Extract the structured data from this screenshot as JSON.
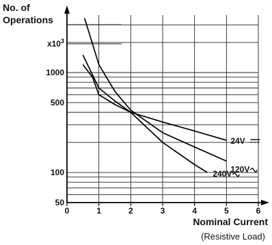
{
  "chart_data": {
    "type": "line",
    "title": "",
    "ylabel_line1": "No. of",
    "ylabel_line2": "Operations",
    "y_multiplier": "x10",
    "y_multiplier_exp": "3",
    "xlabel": "Nominal Current",
    "xlabel_sub": "(Resistive Load)",
    "x_ticks": [
      "0",
      "1",
      "2",
      "3",
      "4",
      "5",
      "6"
    ],
    "y_tick_labels": [
      {
        "value": 50,
        "label": "50"
      },
      {
        "value": 100,
        "label": "100"
      },
      {
        "value": 500,
        "label": "500"
      },
      {
        "value": 1000,
        "label": "1000"
      }
    ],
    "y_scale": "log",
    "xlim": [
      0,
      6
    ],
    "grid": true,
    "series": [
      {
        "name": "24V ⎓",
        "label_text": "24V",
        "x": [
          0.5,
          0.8,
          1.0,
          1.5,
          2.0,
          3.0,
          4.0,
          5.0
        ],
        "y": [
          1200,
          900,
          600,
          480,
          400,
          320,
          260,
          210
        ]
      },
      {
        "name": "120V∿",
        "label_text": "120V",
        "x": [
          0.55,
          1.0,
          1.5,
          2.0,
          3.0,
          4.0,
          5.0
        ],
        "y": [
          3500,
          1200,
          650,
          420,
          250,
          180,
          130
        ]
      },
      {
        "name": "240V∿",
        "label_text": "240V",
        "x": [
          0.5,
          0.8,
          1.0,
          1.5,
          2.0,
          3.0,
          4.0,
          4.4
        ],
        "y": [
          1500,
          950,
          700,
          520,
          400,
          200,
          120,
          100
        ]
      }
    ]
  }
}
